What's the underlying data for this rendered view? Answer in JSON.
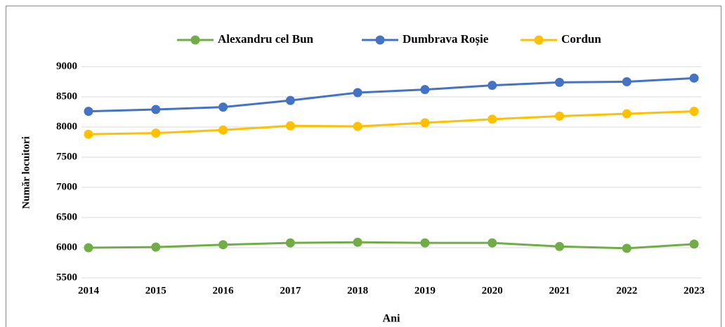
{
  "chart_data": {
    "type": "line",
    "x": [
      2014,
      2015,
      2016,
      2017,
      2018,
      2019,
      2020,
      2021,
      2022,
      2023
    ],
    "series": [
      {
        "name": "Alexandru cel Bun",
        "color": "#70ad47",
        "values": [
          6000,
          6010,
          6050,
          6080,
          6090,
          6080,
          6080,
          6020,
          5990,
          6060
        ]
      },
      {
        "name": "Dumbrava Roșie",
        "color": "#4472c4",
        "values": [
          8260,
          8290,
          8330,
          8440,
          8570,
          8620,
          8690,
          8740,
          8750,
          8810
        ]
      },
      {
        "name": "Cordun",
        "color": "#ffc000",
        "values": [
          7880,
          7900,
          7950,
          8020,
          8010,
          8070,
          8130,
          8180,
          8220,
          8260
        ]
      }
    ],
    "xlabel": "Ani",
    "ylabel": "Număr locuitori",
    "xlim": [
      2014,
      2023
    ],
    "xticks": [
      2014,
      2015,
      2016,
      2017,
      2018,
      2019,
      2020,
      2021,
      2022,
      2023
    ],
    "ylim": [
      5500,
      9000
    ],
    "yticks": [
      5500,
      6000,
      6500,
      7000,
      7500,
      8000,
      8500,
      9000
    ],
    "grid": true,
    "legend": "top"
  }
}
